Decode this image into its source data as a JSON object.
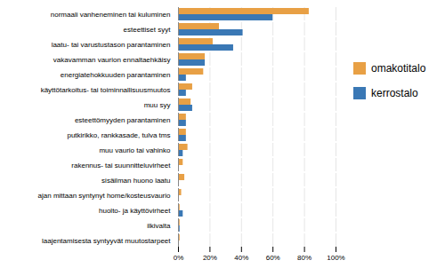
{
  "chart_data": {
    "type": "bar",
    "orientation": "horizontal",
    "categories": [
      "normaali vanheneminen tai kuluminen",
      "esteettiset syyt",
      "laatu- tai varustustason parantaminen",
      "vakavamman vaurion ennaltaehkäisy",
      "energiatehokkuuden parantaminen",
      "käyttötarkoitus- tai toiminnallisuusmuutos",
      "muu syy",
      "esteettömyyden parantaminen",
      "putkirikko, rankkasade, tulva tms",
      "muu vaurio tai vahinko",
      "rakennus- tai suunnitteluvirheet",
      "sisäilman huono laatu",
      "ajan mittaan syntynyt home/kosteusvaurio",
      "huolto- ja käyttövirheet",
      "ilkivalta",
      "laajentamisesta syntyyvät muutostarpeet"
    ],
    "series": [
      {
        "name": "omakotitalo",
        "color": "#E8A045",
        "values": [
          83,
          26,
          22,
          17,
          16,
          9,
          8,
          5,
          5,
          6,
          3,
          4,
          2,
          1,
          1,
          1
        ]
      },
      {
        "name": "kerrostalo",
        "color": "#3A78B5",
        "values": [
          60,
          41,
          35,
          17,
          5,
          5,
          9,
          5,
          5,
          3,
          0,
          0,
          0,
          3,
          1,
          0
        ]
      }
    ],
    "xlim": [
      0,
      100
    ],
    "xticks": [
      {
        "value": 0,
        "label": "0%"
      },
      {
        "value": 20,
        "label": "20%"
      },
      {
        "value": 40,
        "label": "40%"
      },
      {
        "value": 60,
        "label": "60%"
      },
      {
        "value": 80,
        "label": "80%"
      },
      {
        "value": 100,
        "label": "100%"
      }
    ],
    "grid": true,
    "legend": "right"
  }
}
